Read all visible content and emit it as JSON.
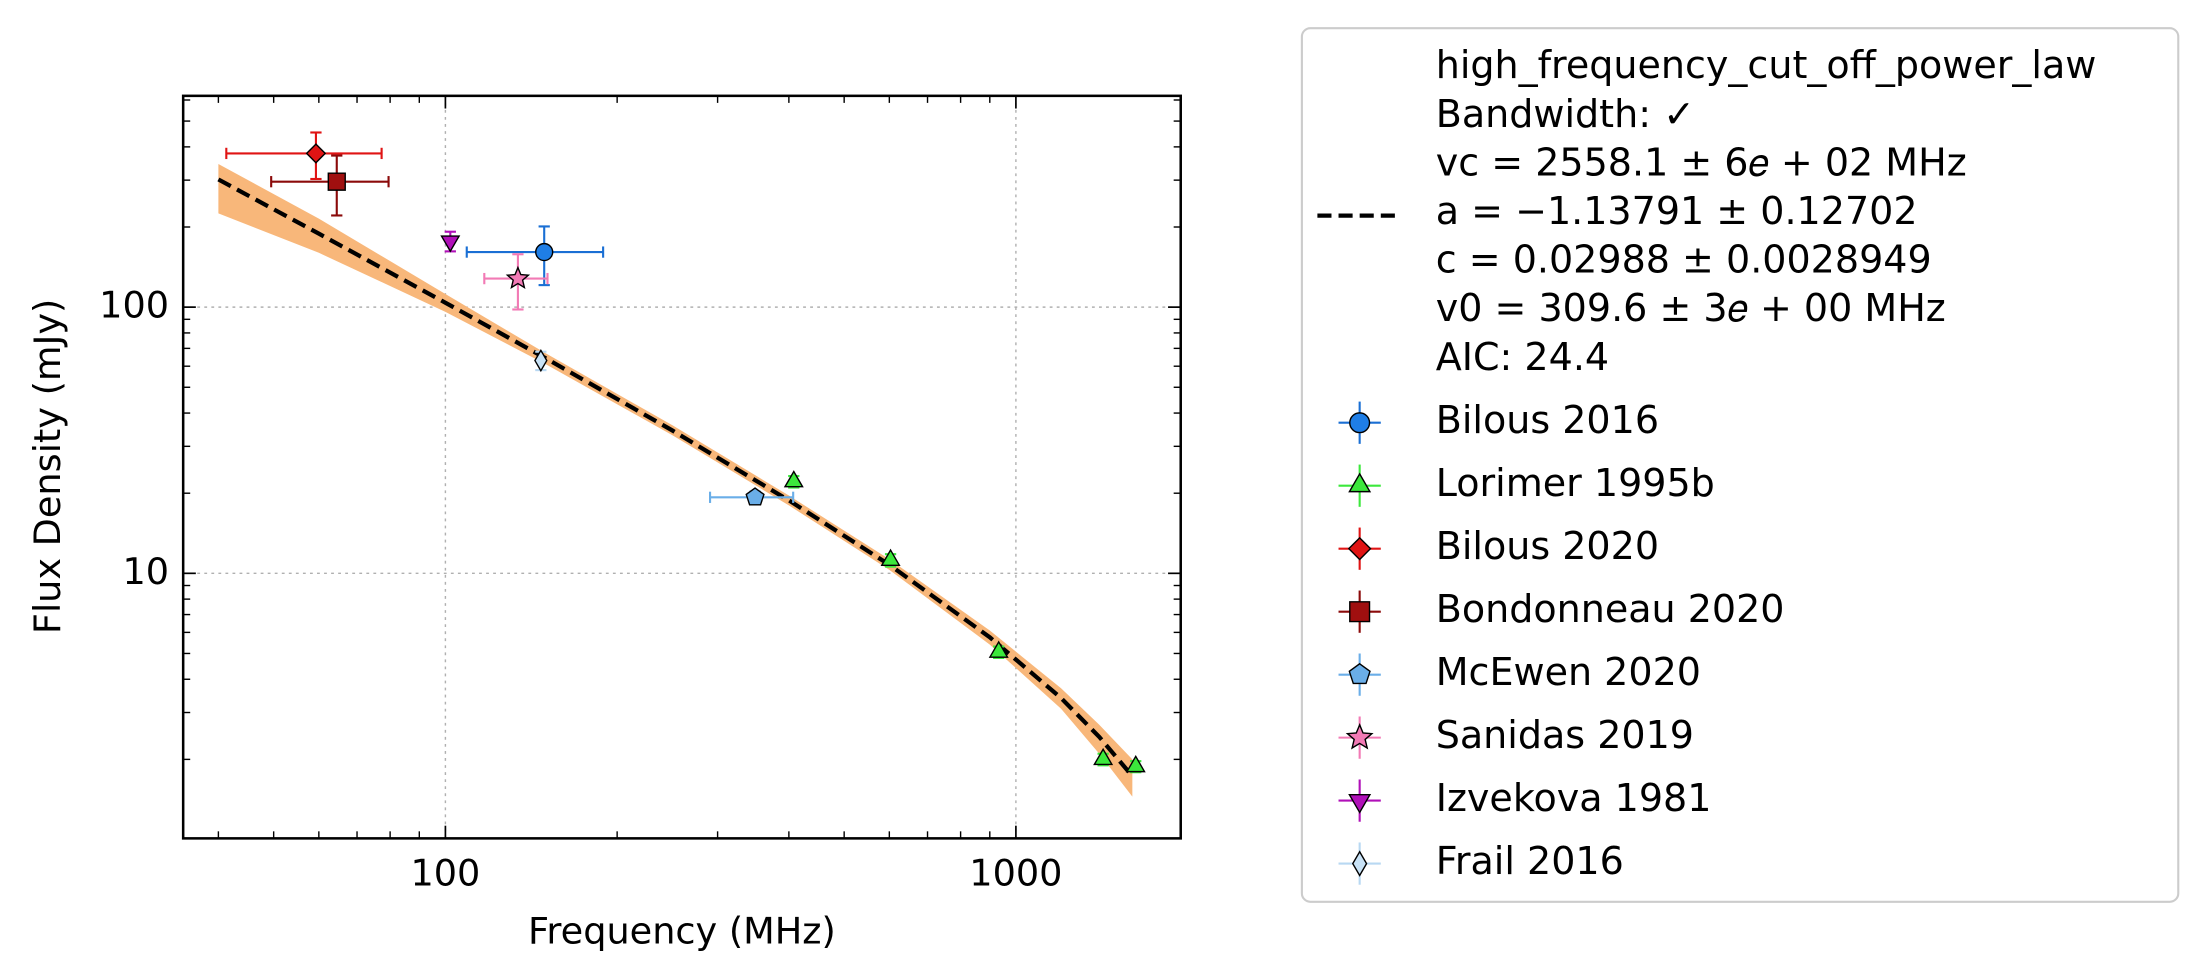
{
  "chart_data": {
    "type": "scatter",
    "xlabel": "Frequency (MHz)",
    "ylabel": "Flux Density (mJy)",
    "xscale": "log",
    "yscale": "log",
    "xlim": [
      34.7,
      1945
    ],
    "ylim": [
      1.01,
      622
    ],
    "xticks": [
      100,
      1000
    ],
    "yticks": [
      10,
      100
    ],
    "xminorticks": [
      40,
      50,
      60,
      70,
      80,
      90,
      200,
      300,
      400,
      500,
      600,
      700,
      800,
      900
    ],
    "yminorticks": [
      2,
      3,
      4,
      5,
      6,
      7,
      8,
      9,
      20,
      30,
      40,
      50,
      60,
      70,
      80,
      90,
      200,
      300,
      400,
      500,
      600
    ],
    "grid": true,
    "fit": {
      "label_lines": [
        "high_frequency_cut_off_power_law",
        "Bandwidth: ✓",
        "vc = 2558.1 ± 6𝑒 + 02 MHz",
        "a = −1.13791 ± 0.12702",
        "c = 0.02988 ± 0.0028949",
        "v0 = 309.6 ± 3𝑒 + 00 MHz",
        "AIC: 24.4"
      ],
      "color": "#000000",
      "band_color": "#f8b77a",
      "x": [
        40,
        60,
        100,
        150,
        250,
        400,
        600,
        900,
        1200,
        1400,
        1600
      ],
      "values": [
        301.8,
        188.8,
        103.9,
        64.2,
        34.4,
        18.8,
        10.77,
        5.75,
        3.4,
        2.43,
        1.73
      ],
      "lower": [
        225,
        160,
        96,
        61,
        33,
        18,
        10.3,
        5.4,
        3.1,
        2.1,
        1.45
      ],
      "upper": [
        345,
        215,
        112,
        67,
        36,
        19.6,
        11.3,
        6.1,
        3.7,
        2.7,
        2.0
      ]
    },
    "series": [
      {
        "name": "Bilous 2016",
        "color": "#1a6fd4",
        "face": "#1f7ee6",
        "marker": "circle",
        "x": [
          149
        ],
        "values": [
          161
        ],
        "xerr": [
          40
        ],
        "yerr": [
          40
        ]
      },
      {
        "name": "Lorimer 1995b",
        "color": "#3ce83c",
        "face": "#3ce83c",
        "marker": "triangle-up",
        "x": [
          408,
          603,
          933,
          1422,
          1622
        ],
        "values": [
          22.1,
          11.2,
          5.06,
          2.0,
          1.88
        ],
        "xerr": [
          null,
          null,
          null,
          null,
          null
        ],
        "yerr": [
          1.1,
          0.6,
          0.25,
          0.1,
          0.09
        ]
      },
      {
        "name": "Bilous 2020",
        "color": "#e01414",
        "face": "#e01414",
        "marker": "diamond",
        "x": [
          59.3
        ],
        "values": [
          378
        ],
        "xerr": [
          18
        ],
        "yerr": [
          75
        ]
      },
      {
        "name": "Bondonneau 2020",
        "color": "#8b0a0a",
        "face": "#a00f0f",
        "marker": "square",
        "x": [
          64.5
        ],
        "values": [
          296
        ],
        "xerr": [
          15
        ],
        "yerr": [
          75
        ]
      },
      {
        "name": "McEwen 2020",
        "color": "#6aaee8",
        "face": "#6aaee8",
        "marker": "pentagon",
        "x": [
          349
        ],
        "values": [
          19.3
        ],
        "xerr": [
          58
        ],
        "yerr": [
          1
        ]
      },
      {
        "name": "Sanidas 2019",
        "color": "#f27ab5",
        "face": "#f27ab5",
        "marker": "star",
        "x": [
          134
        ],
        "values": [
          128
        ],
        "xerr": [
          17
        ],
        "yerr": [
          30
        ]
      },
      {
        "name": "Izvekova 1981",
        "color": "#b010b8",
        "face": "#b010b8",
        "marker": "triangle-down",
        "x": [
          102
        ],
        "values": [
          177
        ],
        "xerr": [
          null
        ],
        "yerr": [
          15
        ]
      },
      {
        "name": "Frail 2016",
        "color": "#b8d8f2",
        "face": "#c8e2f6",
        "marker": "thin-diamond",
        "x": [
          147
        ],
        "values": [
          63
        ],
        "xerr": [
          null
        ],
        "yerr": [
          5
        ]
      }
    ]
  }
}
